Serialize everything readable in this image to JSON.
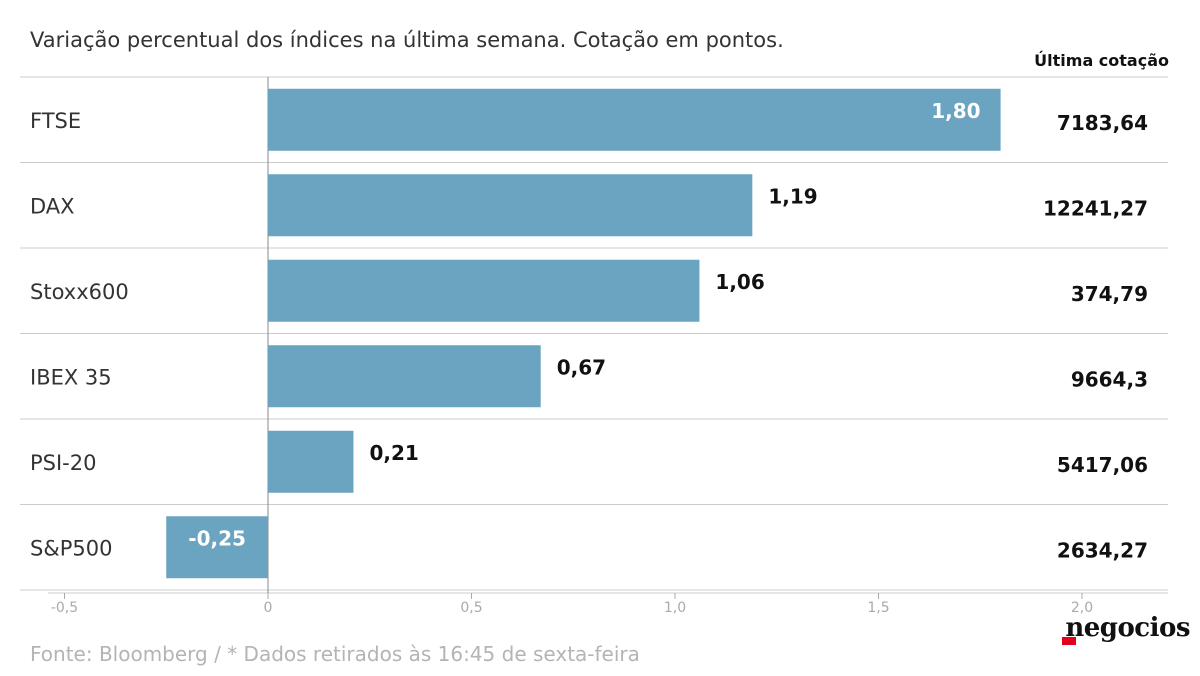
{
  "subtitle": "Variação percentual dos índices na última semana. Cotação em pontos.",
  "value_column_header": "Última cotação",
  "source_note": "Fonte: Bloomberg / * Dados retirados às 16:45 de sexta-feira",
  "brand": {
    "name": "negocios",
    "accent_color": "#e2001a"
  },
  "colors": {
    "bar": "#6ba4c0",
    "label_inside": "#ffffff",
    "label_outside": "#111111",
    "grid": "#cccccc",
    "tick": "#aaaaaa"
  },
  "chart_data": {
    "type": "bar",
    "orientation": "horizontal",
    "categories": [
      "FTSE",
      "DAX",
      "Stoxx600",
      "IBEX 35",
      "PSI-20",
      "S&P500"
    ],
    "values": [
      1.8,
      1.19,
      1.06,
      0.67,
      0.21,
      -0.25
    ],
    "value_labels": [
      "1,80",
      "1,19",
      "1,06",
      "0,67",
      "0,21",
      "-0,25"
    ],
    "last_quote": [
      "7183,64",
      "12241,27",
      "374,79",
      "9664,3",
      "5417,06",
      "2634,27"
    ],
    "xlim": [
      -0.5,
      2.0
    ],
    "x_ticks": [
      -0.5,
      0,
      0.5,
      1.0,
      1.5,
      2.0
    ],
    "x_tick_labels": [
      "-0,5",
      "0",
      "0,5",
      "1,0",
      "1,5",
      "2,0"
    ],
    "grid": false
  }
}
